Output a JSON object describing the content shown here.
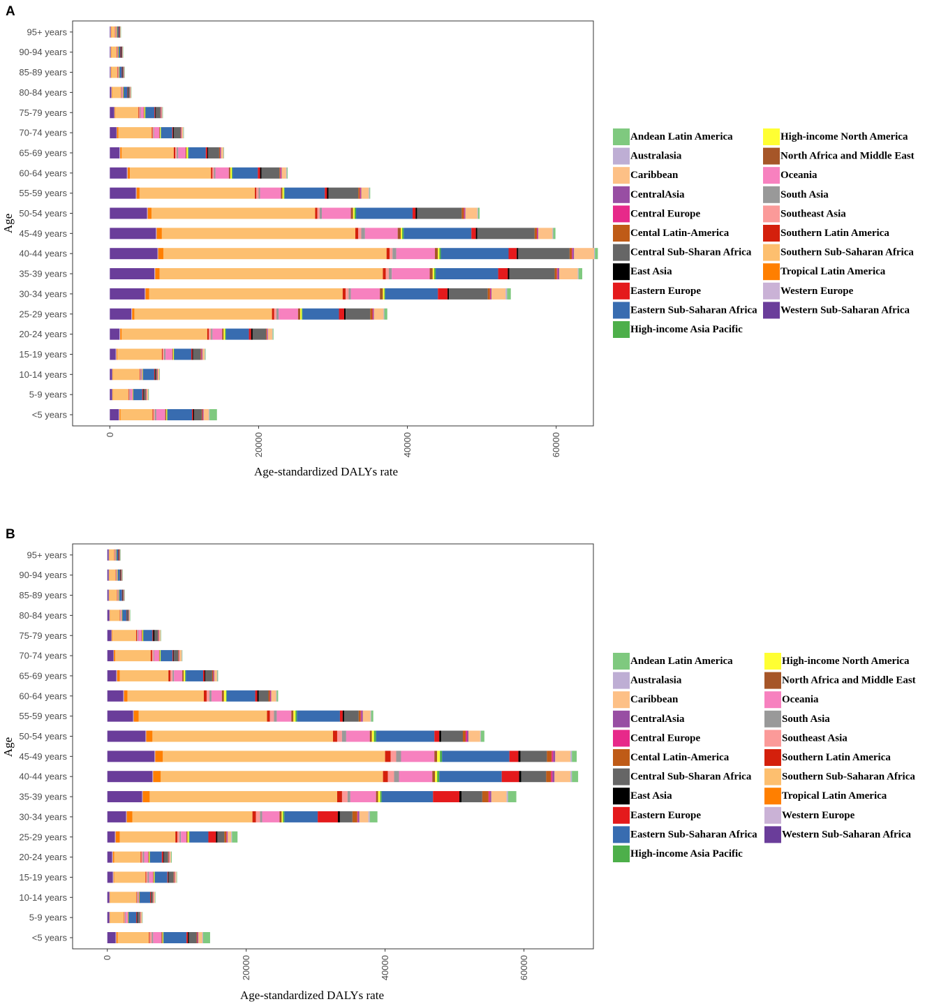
{
  "regions": [
    {
      "name": "Andean Latin America",
      "color": "#7fc97f"
    },
    {
      "name": "Australasia",
      "color": "#beaed4"
    },
    {
      "name": "Caribbean",
      "color": "#fdc086"
    },
    {
      "name": "CentralAsia",
      "color": "#984ea3"
    },
    {
      "name": "Central Europe",
      "color": "#e7298a"
    },
    {
      "name": "Cental Latin-America",
      "color": "#bf5b17"
    },
    {
      "name": "Central Sub-Sharan Africa",
      "color": "#666666"
    },
    {
      "name": "East Asia",
      "color": "#000000"
    },
    {
      "name": "Eastern Europe",
      "color": "#e41a1c"
    },
    {
      "name": "Eastern Sub-Saharan Africa",
      "color": "#386cb0"
    },
    {
      "name": "High-income Asia Pacific",
      "color": "#4daf4a"
    },
    {
      "name": "High-income North America",
      "color": "#ffff33"
    },
    {
      "name": "North Africa and Middle East",
      "color": "#a65628"
    },
    {
      "name": "Oceania",
      "color": "#f781bf"
    },
    {
      "name": "South Asia",
      "color": "#999999"
    },
    {
      "name": "Southeast Asia",
      "color": "#fb9a99"
    },
    {
      "name": "Southern Latin America",
      "color": "#d4200c"
    },
    {
      "name": "Southern Sub-Saharan Africa",
      "color": "#fdbf6f"
    },
    {
      "name": "Tropical Latin America",
      "color": "#ff7f00"
    },
    {
      "name": "Western Europe",
      "color": "#cab2d6"
    },
    {
      "name": "Western Sub-Saharan Africa",
      "color": "#6a3d9a"
    }
  ],
  "chart_data": [
    {
      "panel": "A",
      "type": "bar",
      "orientation": "horizontal",
      "stacked": true,
      "xlabel": "Age-standardized DALYs rate",
      "ylabel": "Age",
      "xlim": [
        -5000,
        65000
      ],
      "xticks": [
        0,
        20000,
        40000,
        60000
      ],
      "categories": [
        "<5 years",
        "5-9 years",
        "10-14 years",
        "15-19 years",
        "20-24 years",
        "25-29 years",
        "30-34 years",
        "35-39 years",
        "40-44 years",
        "45-49 years",
        "50-54 years",
        "55-59 years",
        "60-64 years",
        "65-69 years",
        "70-74 years",
        "75-79 years",
        "80-84 years",
        "85-89 years",
        "90-94 years",
        "95+ years"
      ],
      "stack_order": [
        "Western Sub-Saharan Africa",
        "Western Europe",
        "Tropical Latin America",
        "Southern Sub-Saharan Africa",
        "Southern Latin America",
        "Southeast Asia",
        "South Asia",
        "Oceania",
        "North Africa and Middle East",
        "High-income North America",
        "High-income Asia Pacific",
        "Eastern Sub-Saharan Africa",
        "Eastern Europe",
        "East Asia",
        "Central Sub-Sharan Africa",
        "Cental Latin-America",
        "Central Europe",
        "CentralAsia",
        "Caribbean",
        "Australasia",
        "Andean Latin America"
      ],
      "segments": [
        [
          1200,
          100,
          150,
          4300,
          100,
          200,
          200,
          1200,
          150,
          100,
          50,
          3300,
          150,
          150,
          1000,
          100,
          50,
          100,
          700,
          100,
          1000
        ],
        [
          300,
          50,
          50,
          2100,
          50,
          100,
          100,
          300,
          50,
          50,
          20,
          1200,
          100,
          50,
          300,
          50,
          20,
          50,
          200,
          30,
          80
        ],
        [
          300,
          50,
          50,
          3600,
          50,
          100,
          100,
          100,
          50,
          50,
          20,
          1500,
          100,
          50,
          200,
          50,
          20,
          50,
          200,
          30,
          50
        ],
        [
          800,
          100,
          100,
          6000,
          100,
          200,
          200,
          900,
          100,
          100,
          50,
          2300,
          150,
          100,
          1000,
          100,
          50,
          100,
          300,
          50,
          80
        ],
        [
          1300,
          100,
          200,
          11500,
          200,
          300,
          200,
          1300,
          200,
          200,
          100,
          3100,
          300,
          200,
          1800,
          100,
          50,
          100,
          600,
          50,
          100
        ],
        [
          2900,
          100,
          300,
          18500,
          300,
          300,
          300,
          2600,
          300,
          200,
          100,
          4900,
          700,
          200,
          3300,
          300,
          100,
          100,
          1300,
          100,
          400
        ],
        [
          4700,
          100,
          500,
          26000,
          400,
          400,
          300,
          3900,
          400,
          200,
          100,
          7100,
          1300,
          200,
          5200,
          300,
          100,
          100,
          1900,
          200,
          500
        ],
        [
          6000,
          100,
          600,
          30000,
          400,
          400,
          400,
          5100,
          400,
          200,
          200,
          8400,
          1300,
          200,
          6100,
          300,
          100,
          200,
          2500,
          100,
          500
        ],
        [
          6400,
          100,
          700,
          30000,
          400,
          400,
          500,
          5200,
          400,
          200,
          200,
          9100,
          1100,
          200,
          6900,
          300,
          100,
          200,
          2700,
          100,
          400
        ],
        [
          6200,
          100,
          700,
          26000,
          400,
          400,
          500,
          4400,
          400,
          200,
          200,
          9100,
          600,
          200,
          7700,
          300,
          100,
          100,
          1900,
          100,
          300
        ],
        [
          5000,
          100,
          500,
          22000,
          300,
          300,
          300,
          3900,
          300,
          200,
          200,
          7600,
          400,
          200,
          6000,
          300,
          100,
          100,
          1600,
          100,
          200
        ],
        [
          3500,
          100,
          400,
          15500,
          200,
          300,
          200,
          2800,
          200,
          200,
          100,
          5400,
          300,
          200,
          4000,
          200,
          100,
          100,
          1000,
          100,
          100
        ],
        [
          2300,
          100,
          300,
          10900,
          200,
          200,
          200,
          1800,
          200,
          200,
          100,
          3400,
          300,
          200,
          2400,
          100,
          100,
          100,
          600,
          100,
          100
        ],
        [
          1300,
          100,
          200,
          7000,
          200,
          200,
          200,
          1000,
          100,
          200,
          100,
          2300,
          200,
          100,
          1500,
          100,
          50,
          100,
          300,
          50,
          50
        ],
        [
          900,
          50,
          200,
          4500,
          100,
          100,
          100,
          700,
          100,
          100,
          50,
          1500,
          100,
          100,
          900,
          50,
          50,
          50,
          200,
          50,
          30
        ],
        [
          600,
          50,
          100,
          3100,
          100,
          100,
          100,
          400,
          100,
          100,
          50,
          1200,
          100,
          100,
          600,
          50,
          50,
          50,
          100,
          30,
          20
        ],
        [
          200,
          50,
          50,
          1200,
          50,
          50,
          50,
          100,
          50,
          50,
          20,
          500,
          50,
          50,
          200,
          20,
          20,
          20,
          100,
          20,
          10
        ],
        [
          100,
          50,
          50,
          800,
          50,
          50,
          50,
          50,
          50,
          50,
          20,
          300,
          50,
          50,
          100,
          20,
          20,
          20,
          50,
          20,
          10
        ],
        [
          100,
          50,
          50,
          700,
          50,
          50,
          50,
          50,
          50,
          50,
          20,
          200,
          50,
          50,
          100,
          20,
          20,
          20,
          50,
          20,
          10
        ],
        [
          100,
          50,
          50,
          500,
          50,
          50,
          50,
          50,
          50,
          50,
          20,
          150,
          50,
          50,
          50,
          20,
          20,
          20,
          50,
          20,
          10
        ]
      ]
    },
    {
      "panel": "B",
      "type": "bar",
      "orientation": "horizontal",
      "stacked": true,
      "xlabel": "Age-standardized DALYs rate",
      "ylabel": "Age",
      "xlim": [
        -5000,
        70000
      ],
      "xticks": [
        0,
        20000,
        40000,
        60000
      ],
      "categories": [
        "<5 years",
        "5-9 years",
        "10-14 years",
        "15-19 years",
        "20-24 years",
        "25-29 years",
        "30-34 years",
        "35-39 years",
        "40-44 years",
        "45-49 years",
        "50-54 years",
        "55-59 years",
        "60-64 years",
        "65-69 years",
        "70-74 years",
        "75-79 years",
        "80-84 years",
        "85-89 years",
        "90-94 years",
        "95+ years"
      ],
      "stack_order": [
        "Western Sub-Saharan Africa",
        "Western Europe",
        "Tropical Latin America",
        "Southern Sub-Saharan Africa",
        "Southern Latin America",
        "Southeast Asia",
        "South Asia",
        "Oceania",
        "North Africa and Middle East",
        "High-income North America",
        "High-income Asia Pacific",
        "Eastern Sub-Saharan Africa",
        "Eastern Europe",
        "East Asia",
        "Central Sub-Sharan Africa",
        "Cental Latin-America",
        "Central Europe",
        "CentralAsia",
        "Caribbean",
        "Australasia",
        "Andean Latin America"
      ],
      "segments": [
        [
          1200,
          100,
          200,
          4500,
          100,
          300,
          200,
          1200,
          150,
          100,
          50,
          3300,
          200,
          150,
          1100,
          100,
          50,
          100,
          600,
          100,
          1000
        ],
        [
          300,
          50,
          50,
          2000,
          50,
          100,
          100,
          300,
          50,
          50,
          20,
          1100,
          100,
          100,
          300,
          50,
          20,
          50,
          200,
          30,
          50
        ],
        [
          300,
          50,
          50,
          3800,
          50,
          100,
          100,
          100,
          50,
          50,
          20,
          1500,
          100,
          50,
          200,
          50,
          20,
          50,
          200,
          30,
          50
        ],
        [
          800,
          100,
          100,
          4500,
          100,
          200,
          200,
          600,
          100,
          100,
          50,
          1800,
          100,
          100,
          700,
          100,
          50,
          50,
          200,
          30,
          50
        ],
        [
          700,
          100,
          200,
          3800,
          100,
          200,
          200,
          600,
          100,
          100,
          50,
          1700,
          200,
          100,
          600,
          100,
          50,
          50,
          200,
          30,
          100
        ],
        [
          1100,
          100,
          600,
          8000,
          300,
          300,
          200,
          800,
          150,
          200,
          100,
          2700,
          1100,
          200,
          1000,
          300,
          100,
          100,
          500,
          100,
          800
        ],
        [
          2700,
          100,
          800,
          17300,
          500,
          600,
          300,
          2500,
          300,
          200,
          200,
          4800,
          2900,
          300,
          1800,
          700,
          100,
          200,
          1300,
          200,
          1100
        ],
        [
          5000,
          100,
          1000,
          27000,
          700,
          800,
          400,
          3700,
          300,
          300,
          200,
          7400,
          3800,
          300,
          3000,
          900,
          200,
          200,
          2200,
          200,
          1200
        ],
        [
          6500,
          100,
          1100,
          32000,
          700,
          900,
          700,
          4800,
          400,
          300,
          300,
          9000,
          2500,
          300,
          3600,
          700,
          200,
          300,
          2300,
          200,
          900
        ],
        [
          6800,
          100,
          1100,
          32000,
          800,
          800,
          700,
          4800,
          400,
          400,
          300,
          9700,
          1300,
          300,
          3800,
          700,
          200,
          300,
          2200,
          200,
          700
        ],
        [
          5500,
          100,
          900,
          26000,
          600,
          700,
          600,
          3400,
          300,
          300,
          300,
          8400,
          700,
          300,
          3100,
          400,
          200,
          200,
          1700,
          100,
          500
        ],
        [
          3700,
          100,
          700,
          18500,
          400,
          600,
          400,
          2100,
          300,
          300,
          200,
          6200,
          400,
          200,
          2100,
          300,
          100,
          200,
          1100,
          100,
          300
        ],
        [
          2300,
          100,
          500,
          11000,
          400,
          400,
          300,
          1500,
          300,
          300,
          100,
          4100,
          300,
          200,
          1400,
          200,
          100,
          100,
          700,
          100,
          200
        ],
        [
          1300,
          100,
          400,
          7000,
          300,
          300,
          200,
          1200,
          200,
          200,
          100,
          2500,
          200,
          100,
          1000,
          150,
          50,
          100,
          400,
          50,
          100
        ],
        [
          900,
          50,
          200,
          5100,
          200,
          200,
          100,
          700,
          100,
          100,
          50,
          1700,
          100,
          100,
          600,
          100,
          50,
          50,
          300,
          50,
          50
        ],
        [
          600,
          50,
          100,
          3400,
          100,
          100,
          100,
          500,
          100,
          100,
          50,
          1300,
          100,
          200,
          500,
          50,
          50,
          50,
          200,
          30,
          20
        ],
        [
          300,
          50,
          50,
          1400,
          50,
          50,
          50,
          100,
          50,
          50,
          20,
          600,
          50,
          50,
          200,
          20,
          20,
          20,
          100,
          20,
          10
        ],
        [
          200,
          50,
          50,
          1100,
          50,
          50,
          50,
          50,
          50,
          50,
          20,
          400,
          50,
          50,
          100,
          20,
          20,
          20,
          50,
          20,
          10
        ],
        [
          200,
          50,
          50,
          900,
          50,
          50,
          50,
          50,
          50,
          50,
          20,
          300,
          50,
          50,
          100,
          20,
          20,
          20,
          50,
          20,
          10
        ],
        [
          200,
          50,
          50,
          700,
          50,
          50,
          50,
          50,
          50,
          50,
          20,
          250,
          50,
          50,
          50,
          20,
          20,
          20,
          50,
          20,
          10
        ]
      ]
    }
  ]
}
